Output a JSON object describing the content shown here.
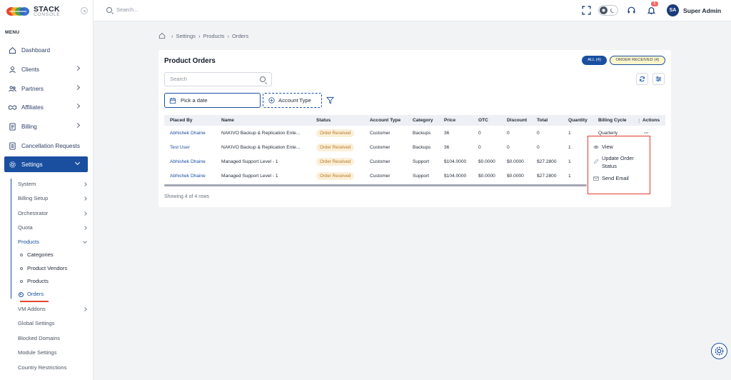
{
  "app": {
    "logo_title": "STACK",
    "logo_subtitle": "CONSOLE",
    "search_placeholder": "Search...",
    "notification_count": "5",
    "user_initials": "SA",
    "user_name": "Super Admin",
    "accent_color": "#1a4fa0"
  },
  "sidebar": {
    "menu_label": "MENU",
    "items": [
      {
        "label": "Dashboard",
        "icon": "home-icon"
      },
      {
        "label": "Clients",
        "icon": "user-icon"
      },
      {
        "label": "Partners",
        "icon": "users-icon"
      },
      {
        "label": "Affiliates",
        "icon": "handshake-icon"
      },
      {
        "label": "Billing",
        "icon": "invoice-icon"
      },
      {
        "label": "Cancellation Requests",
        "icon": "document-icon"
      },
      {
        "label": "Settings",
        "icon": "gear-icon"
      }
    ],
    "settings_sub": [
      "System",
      "Billing Setup",
      "Orchestrator",
      "Quota",
      "Products"
    ],
    "products_sub": [
      "Categories",
      "Product Vendors",
      "Products",
      "Orders"
    ],
    "settings_sub_after": [
      "VM Addons",
      "Global Settings",
      "Blocked Domains",
      "Module Settings",
      "Country Restrictions"
    ]
  },
  "breadcrumb": [
    "Settings",
    "Products",
    "Orders"
  ],
  "card": {
    "title": "Product Orders",
    "pill_all": "ALL (4)",
    "pill_received": "ORDER RECEIVED (4)",
    "search_placeholder": "Search",
    "date_placeholder": "Pick a date",
    "account_type_label": "Account Type",
    "showing": "Showing 4 of 4 rows"
  },
  "table": {
    "columns": [
      "Placed By",
      "Name",
      "Status",
      "Account Type",
      "Category",
      "Price",
      "OTC",
      "Discount",
      "Total",
      "Quantity",
      "Billing Cycle",
      "Actions"
    ],
    "rows": [
      [
        "Abhishek Dhaine",
        "NAKIVO Backup & Replication Ente...",
        "Order Received",
        "Customer",
        "Backups",
        "36",
        "0",
        "0",
        "0",
        "1",
        "Quarterly"
      ],
      [
        "Test User",
        "NAKIVO Backup & Replication Ente...",
        "Order Received",
        "Customer",
        "Backups",
        "36",
        "0",
        "0",
        "0",
        "1",
        ""
      ],
      [
        "Abhishek Dhaine",
        "Managed Support Level - 1",
        "Order Received",
        "Customer",
        "Support",
        "$104.0000",
        "$0.0000",
        "$0.0000",
        "$27.2800",
        "1",
        ""
      ],
      [
        "Abhishek Dhaine",
        "Managed Support Level - 1",
        "Order Received",
        "Customer",
        "Support",
        "$104.0000",
        "$0.0000",
        "$0.0000",
        "$27.2800",
        "1",
        ""
      ]
    ]
  },
  "actions_menu": {
    "view": "View",
    "update_status_line1": "Update Order",
    "update_status_line2": "Status",
    "send_email": "Send Email"
  }
}
